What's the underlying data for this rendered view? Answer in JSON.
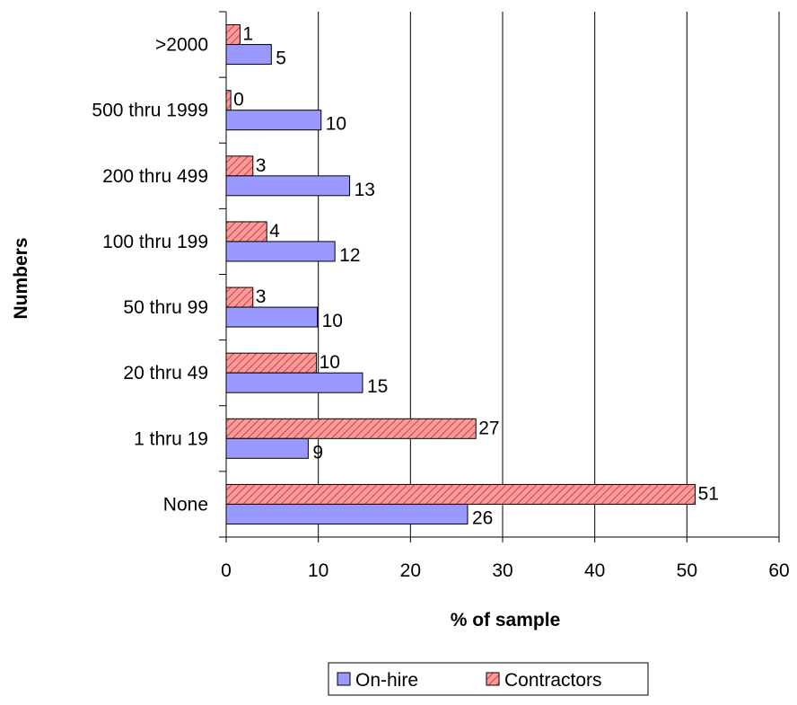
{
  "chart_data": {
    "type": "bar",
    "orientation": "horizontal",
    "categories": [
      "None",
      "1 thru 19",
      "20 thru 49",
      "50 thru 99",
      "100 thru 199",
      "200 thru 499",
      "500 thru 1999",
      ">2000"
    ],
    "series": [
      {
        "name": "On-hire",
        "values": [
          26.2,
          8.9,
          14.8,
          9.9,
          11.8,
          13.4,
          10.3,
          4.9
        ],
        "labels": [
          "26",
          "9",
          "15",
          "10",
          "12",
          "13",
          "10",
          "5"
        ],
        "color": "#9999ff"
      },
      {
        "name": "Contractors",
        "values": [
          50.9,
          27.1,
          9.8,
          2.9,
          4.4,
          2.9,
          0.5,
          1.5
        ],
        "labels": [
          "51",
          "27",
          "10",
          "3",
          "4",
          "3",
          "0",
          "1"
        ],
        "color": "#ff9999",
        "pattern": "diagonal-hatch"
      }
    ],
    "xlabel": "% of sample",
    "ylabel": "Numbers",
    "xlim": [
      0,
      60
    ],
    "xticks": [
      "0",
      "10",
      "20",
      "30",
      "40",
      "50",
      "60"
    ],
    "grid": "vertical",
    "legend": "bottom"
  }
}
